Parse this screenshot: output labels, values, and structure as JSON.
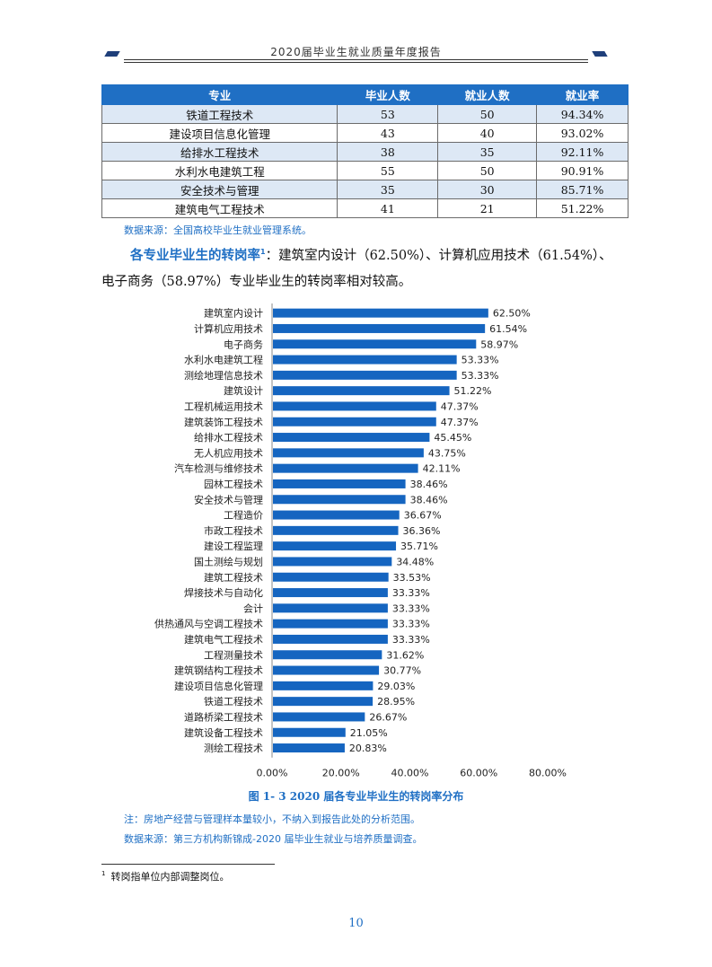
{
  "header": {
    "title": "2020届毕业生就业质量年度报告"
  },
  "table": {
    "columns": [
      "专业",
      "毕业人数",
      "就业人数",
      "就业率"
    ],
    "rows": [
      [
        "铁道工程技术",
        "53",
        "50",
        "94.34%"
      ],
      [
        "建设项目信息化管理",
        "43",
        "40",
        "93.02%"
      ],
      [
        "给排水工程技术",
        "38",
        "35",
        "92.11%"
      ],
      [
        "水利水电建筑工程",
        "55",
        "50",
        "90.91%"
      ],
      [
        "安全技术与管理",
        "35",
        "30",
        "85.71%"
      ],
      [
        "建筑电气工程技术",
        "41",
        "21",
        "51.22%"
      ]
    ],
    "source": "数据来源：全国高校毕业生就业管理系统。"
  },
  "paragraph": {
    "lead": "各专业毕业生的转岗率",
    "lead_sup": "1",
    "line1_rest": "：建筑室内设计（62.50%）、计算机应用技术（61.54%）、",
    "line2": "电子商务（58.97%）专业毕业生的转岗率相对较高。"
  },
  "chart_data": {
    "type": "bar",
    "orientation": "horizontal",
    "categories": [
      "建筑室内设计",
      "计算机应用技术",
      "电子商务",
      "水利水电建筑工程",
      "测绘地理信息技术",
      "建筑设计",
      "工程机械运用技术",
      "建筑装饰工程技术",
      "给排水工程技术",
      "无人机应用技术",
      "汽车检测与维修技术",
      "园林工程技术",
      "安全技术与管理",
      "工程造价",
      "市政工程技术",
      "建设工程监理",
      "国土测绘与规划",
      "建筑工程技术",
      "焊接技术与自动化",
      "会计",
      "供热通风与空调工程技术",
      "建筑电气工程技术",
      "工程测量技术",
      "建筑钢结构工程技术",
      "建设项目信息化管理",
      "铁道工程技术",
      "道路桥梁工程技术",
      "建筑设备工程技术",
      "测绘工程技术"
    ],
    "values": [
      62.5,
      61.54,
      58.97,
      53.33,
      53.33,
      51.22,
      47.37,
      47.37,
      45.45,
      43.75,
      42.11,
      38.46,
      38.46,
      36.67,
      36.36,
      35.71,
      34.48,
      33.53,
      33.33,
      33.33,
      33.33,
      33.33,
      31.62,
      30.77,
      29.03,
      28.95,
      26.67,
      21.05,
      20.83
    ],
    "value_labels": [
      "62.50%",
      "61.54%",
      "58.97%",
      "53.33%",
      "53.33%",
      "51.22%",
      "47.37%",
      "47.37%",
      "45.45%",
      "43.75%",
      "42.11%",
      "38.46%",
      "38.46%",
      "36.67%",
      "36.36%",
      "35.71%",
      "34.48%",
      "33.53%",
      "33.33%",
      "33.33%",
      "33.33%",
      "33.33%",
      "31.62%",
      "30.77%",
      "29.03%",
      "28.95%",
      "26.67%",
      "21.05%",
      "20.83%"
    ],
    "xticks": [
      "0.00%",
      "20.00%",
      "40.00%",
      "60.00%",
      "80.00%"
    ],
    "xlim": [
      0,
      80
    ],
    "bar_color": "#1565c0",
    "grid": false,
    "title": "图 1- 3   2020 届各专业毕业生的转岗率分布"
  },
  "notes": {
    "note1": "注：房地产经营与管理样本量较小，不纳入到报告此处的分析范围。",
    "note2": "数据来源：第三方机构新锦成-2020 届毕业生就业与培养质量调查。"
  },
  "footnote": {
    "mark": "1",
    "text": "转岗指单位内部调整岗位。"
  },
  "page_number": "10",
  "colors": {
    "accent": "#1f6fc4",
    "table_header": "#1f6fc4",
    "table_stripe": "#dde8f5"
  }
}
